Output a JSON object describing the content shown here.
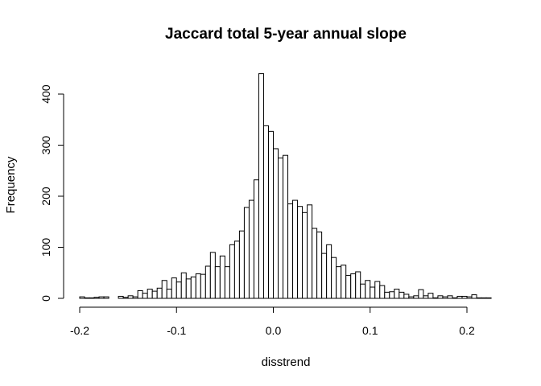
{
  "chart_data": {
    "type": "bar",
    "title": "Jaccard total 5-year annual slope",
    "xlabel": "disstrend",
    "ylabel": "Frequency",
    "xlim": [
      -0.2,
      0.225
    ],
    "ylim": [
      0,
      400
    ],
    "xticks": [
      -0.2,
      -0.1,
      0.0,
      0.1,
      0.2
    ],
    "xtick_labels": [
      "-0.2",
      "-0.1",
      "0.0",
      "0.1",
      "0.2"
    ],
    "yticks": [
      0,
      100,
      200,
      300,
      400
    ],
    "ytick_labels": [
      "0",
      "100",
      "200",
      "300",
      "400"
    ],
    "bin_width": 0.005,
    "bin_start": -0.2,
    "counts": [
      3,
      1,
      1,
      2,
      3,
      3,
      0,
      0,
      4,
      2,
      5,
      3,
      15,
      10,
      18,
      14,
      20,
      35,
      18,
      40,
      32,
      50,
      38,
      42,
      48,
      47,
      63,
      90,
      62,
      83,
      62,
      105,
      112,
      132,
      178,
      192,
      232,
      440,
      338,
      327,
      293,
      275,
      280,
      185,
      192,
      180,
      168,
      183,
      137,
      130,
      88,
      105,
      80,
      62,
      65,
      45,
      48,
      52,
      28,
      35,
      22,
      33,
      25,
      12,
      13,
      18,
      12,
      8,
      3,
      5,
      17,
      5,
      10,
      1,
      5,
      3,
      5,
      1,
      4,
      4,
      3,
      7,
      1,
      1,
      1
    ],
    "grid": false,
    "legend": "none"
  }
}
